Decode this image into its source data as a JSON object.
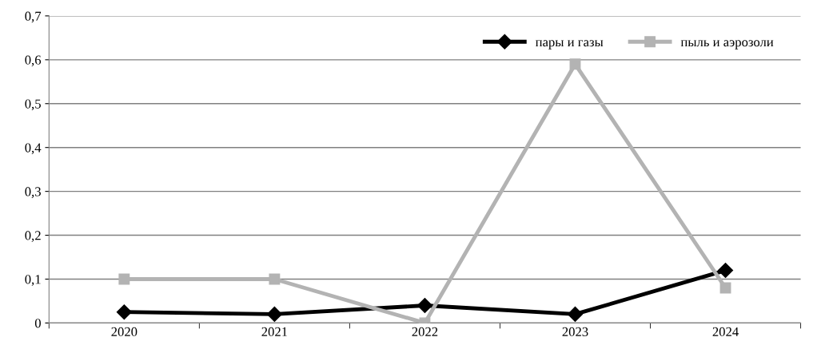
{
  "chart_data": {
    "type": "line",
    "categories": [
      "2020",
      "2021",
      "2022",
      "2023",
      "2024"
    ],
    "series": [
      {
        "name": "пары и газы",
        "color": "#000000",
        "marker": "diamond",
        "values": [
          0.025,
          0.02,
          0.04,
          0.02,
          0.12
        ]
      },
      {
        "name": "пыль и аэрозоли",
        "color": "#b3b3b3",
        "marker": "square",
        "values": [
          0.1,
          0.1,
          0.0,
          0.59,
          0.08
        ]
      }
    ],
    "ylim": [
      0,
      0.7
    ],
    "yticks": [
      0,
      {
        "value": 0.1,
        "label": "0,1"
      },
      {
        "value": 0.2,
        "label": "0,2"
      },
      {
        "value": 0.3,
        "label": "0,3"
      },
      {
        "value": 0.4,
        "label": "0,4"
      },
      {
        "value": 0.5,
        "label": "0,5"
      },
      {
        "value": 0.6,
        "label": "0,6"
      },
      {
        "value": 0.7,
        "label": "0,7"
      }
    ],
    "grid": "y",
    "legend": "top right",
    "line_style": "solid"
  }
}
